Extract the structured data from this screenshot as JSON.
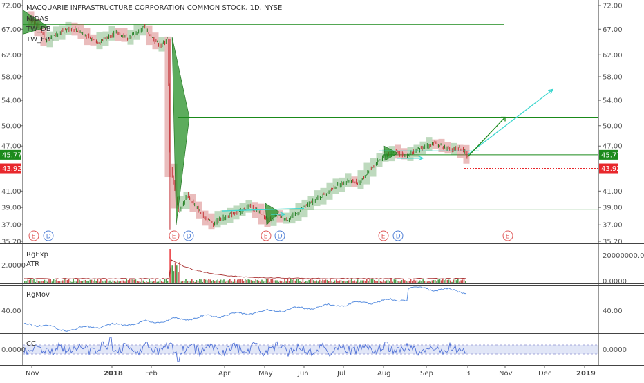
{
  "header": {
    "title": "MACQUARIE INFRASTRUCTURE CORPORATION COMMON STOCK, 1D, NYSE",
    "indicators": [
      "MIDAS",
      "TW_DB",
      "TW_EPS"
    ]
  },
  "price_badges": {
    "last": "45.77",
    "last_color": "#1b8a1b",
    "prev": "43.92",
    "prev_color": "#e8272c"
  },
  "panes": {
    "volume": {
      "title1": "RgExp",
      "title2": "ATR"
    },
    "momentum": {
      "title": "RgMov"
    },
    "cci": {
      "title": "CCI"
    }
  },
  "events": [
    {
      "type": "E"
    },
    {
      "type": "D"
    },
    {
      "type": "E"
    },
    {
      "type": "D"
    },
    {
      "type": "E"
    },
    {
      "type": "D"
    },
    {
      "type": "E"
    },
    {
      "type": "D"
    },
    {
      "type": "E"
    }
  ],
  "chart_data": [
    {
      "type": "candlestick",
      "title": "MACQUARIE INFRASTRUCTURE CORPORATION COMMON STOCK, 1D, NYSE",
      "x_ticks": [
        "Nov",
        "2018",
        "Feb",
        "Apr",
        "May",
        "Jun",
        "Jul",
        "Aug",
        "Sep",
        "3",
        "Nov",
        "Dec",
        "2019"
      ],
      "y_ticks": [
        "72.00",
        "67.00",
        "62.00",
        "58.00",
        "54.00",
        "50.00",
        "47.00",
        "45.77",
        "43.92",
        "41.00",
        "39.00",
        "37.00",
        "35.20"
      ],
      "ylim": [
        35.2,
        72.0
      ],
      "y_scale": "log",
      "close_path": [
        [
          "2017-10-27",
          69.5
        ],
        [
          "2017-11-03",
          67.8
        ],
        [
          "2017-11-10",
          64.8
        ],
        [
          "2017-11-17",
          65.9
        ],
        [
          "2017-11-24",
          66.7
        ],
        [
          "2017-12-01",
          67.2
        ],
        [
          "2017-12-08",
          66.4
        ],
        [
          "2017-12-15",
          65.0
        ],
        [
          "2017-12-22",
          64.4
        ],
        [
          "2017-12-29",
          65.6
        ],
        [
          "2018-01-05",
          66.3
        ],
        [
          "2018-01-12",
          65.4
        ],
        [
          "2018-01-19",
          65.9
        ],
        [
          "2018-01-26",
          67.5
        ],
        [
          "2018-02-02",
          65.2
        ],
        [
          "2018-02-09",
          63.6
        ],
        [
          "2018-02-14",
          65.3
        ],
        [
          "2018-02-16",
          44.5
        ],
        [
          "2018-02-23",
          38.5
        ],
        [
          "2018-03-02",
          40.5
        ],
        [
          "2018-03-09",
          39.0
        ],
        [
          "2018-03-16",
          37.8
        ],
        [
          "2018-03-23",
          37.2
        ],
        [
          "2018-03-30",
          37.8
        ],
        [
          "2018-04-06",
          38.2
        ],
        [
          "2018-04-13",
          38.6
        ],
        [
          "2018-04-20",
          39.2
        ],
        [
          "2018-04-27",
          38.5
        ],
        [
          "2018-05-04",
          37.5
        ],
        [
          "2018-05-11",
          38.0
        ],
        [
          "2018-05-18",
          37.6
        ],
        [
          "2018-05-25",
          38.2
        ],
        [
          "2018-06-01",
          39.0
        ],
        [
          "2018-06-08",
          39.8
        ],
        [
          "2018-06-15",
          40.5
        ],
        [
          "2018-06-22",
          41.3
        ],
        [
          "2018-06-29",
          41.9
        ],
        [
          "2018-07-06",
          42.4
        ],
        [
          "2018-07-13",
          42.0
        ],
        [
          "2018-07-20",
          43.5
        ],
        [
          "2018-07-27",
          44.8
        ],
        [
          "2018-08-03",
          45.8
        ],
        [
          "2018-08-10",
          46.2
        ],
        [
          "2018-08-17",
          45.6
        ],
        [
          "2018-08-24",
          46.3
        ],
        [
          "2018-08-31",
          46.9
        ],
        [
          "2018-09-07",
          47.4
        ],
        [
          "2018-09-14",
          46.8
        ],
        [
          "2018-09-21",
          46.5
        ],
        [
          "2018-09-28",
          46.7
        ],
        [
          "2018-10-03",
          45.5
        ]
      ],
      "horizontal_levels": [
        68.0,
        51.3,
        45.77,
        43.92,
        38.8
      ],
      "projection": [
        [
          "2018-10-03",
          45.5
        ],
        [
          "2018-11-01",
          51.3
        ],
        [
          "2018-12-01",
          55.8
        ]
      ]
    },
    {
      "type": "bar",
      "title": "RgExp / ATR",
      "y_ticks_left": [
        "2.0000"
      ],
      "y_ticks_right": [
        "20000000.0000",
        "0.0000"
      ],
      "peak_date": "2018-02-16"
    },
    {
      "type": "line",
      "title": "RgMov",
      "y_ticks": [
        "40.00"
      ]
    },
    {
      "type": "line",
      "title": "CCI",
      "y_ticks": [
        "0.0000"
      ]
    }
  ]
}
